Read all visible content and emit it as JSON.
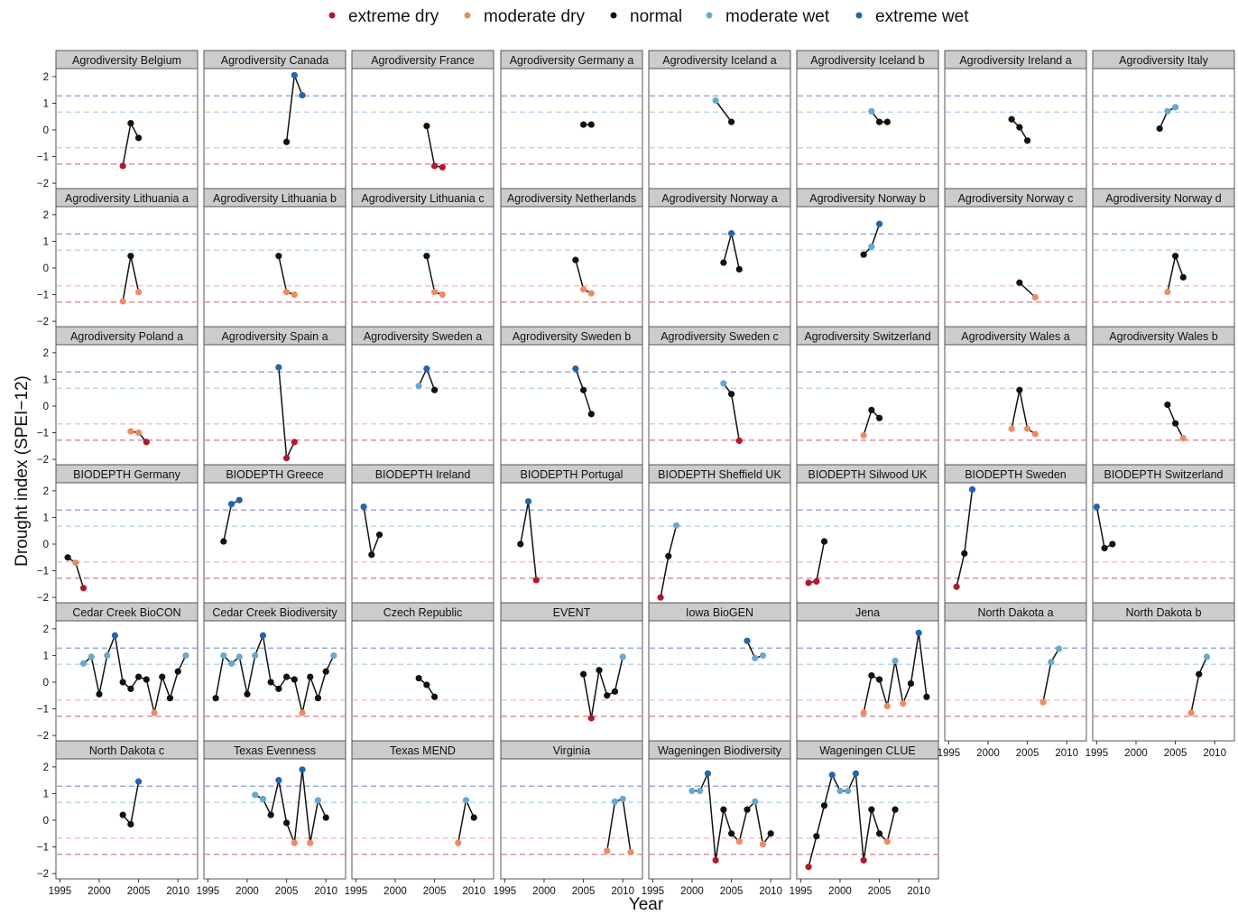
{
  "chart_data": {
    "type": "scatter",
    "xlabel": "Year",
    "ylabel": "Drought index (SPEI−12)",
    "xlim": [
      1994.5,
      2012.5
    ],
    "ylim": [
      -2.2,
      2.3
    ],
    "xticks": [
      1995,
      2000,
      2005,
      2010
    ],
    "yticks": [
      -2,
      -1,
      0,
      1,
      2
    ],
    "ytick_labels": [
      "−2",
      "−1",
      "0",
      "1",
      "2"
    ],
    "thresholds": [
      {
        "value": 1.28,
        "color": "#7b8fd0"
      },
      {
        "value": 0.67,
        "color": "#a9cbe0"
      },
      {
        "value": -0.67,
        "color": "#f2b49a"
      },
      {
        "value": -1.28,
        "color": "#d26a7c"
      }
    ],
    "legend": [
      {
        "label": "extreme dry",
        "color": "#b2182b"
      },
      {
        "label": "moderate dry",
        "color": "#ef8a62"
      },
      {
        "label": "normal",
        "color": "#111111"
      },
      {
        "label": "moderate wet",
        "color": "#67a9cf"
      },
      {
        "label": "extreme wet",
        "color": "#2166ac"
      }
    ],
    "grid": false,
    "legend_position": "top",
    "panels": [
      {
        "title": "Agrodiversity Belgium",
        "x": [
          2003,
          2004,
          2005
        ],
        "y": [
          -1.35,
          0.25,
          -0.3
        ]
      },
      {
        "title": "Agrodiversity Canada",
        "x": [
          2005,
          2006,
          2007
        ],
        "y": [
          -0.45,
          2.05,
          1.3
        ]
      },
      {
        "title": "Agrodiversity France",
        "x": [
          2004,
          2005,
          2006
        ],
        "y": [
          0.15,
          -1.35,
          -1.4
        ]
      },
      {
        "title": "Agrodiversity Germany a",
        "x": [
          2005,
          2006
        ],
        "y": [
          0.2,
          0.2
        ]
      },
      {
        "title": "Agrodiversity Iceland a",
        "x": [
          2003,
          2005
        ],
        "y": [
          1.1,
          0.3
        ]
      },
      {
        "title": "Agrodiversity Iceland b",
        "x": [
          2004,
          2005,
          2006
        ],
        "y": [
          0.7,
          0.3,
          0.3
        ]
      },
      {
        "title": "Agrodiversity Ireland a",
        "x": [
          2003,
          2004,
          2005
        ],
        "y": [
          0.4,
          0.1,
          -0.4
        ]
      },
      {
        "title": "Agrodiversity Italy",
        "x": [
          2003,
          2004,
          2005
        ],
        "y": [
          0.05,
          0.7,
          0.85
        ]
      },
      {
        "title": "Agrodiversity Lithuania a",
        "x": [
          2003,
          2004,
          2005
        ],
        "y": [
          -1.25,
          0.45,
          -0.9
        ]
      },
      {
        "title": "Agrodiversity Lithuania b",
        "x": [
          2004,
          2005,
          2006
        ],
        "y": [
          0.45,
          -0.9,
          -1.0
        ]
      },
      {
        "title": "Agrodiversity Lithuania c",
        "x": [
          2004,
          2005,
          2006
        ],
        "y": [
          0.45,
          -0.9,
          -1.0
        ]
      },
      {
        "title": "Agrodiversity Netherlands",
        "x": [
          2004,
          2005,
          2006
        ],
        "y": [
          0.3,
          -0.8,
          -0.95
        ]
      },
      {
        "title": "Agrodiversity Norway a",
        "x": [
          2004,
          2005,
          2006
        ],
        "y": [
          0.2,
          1.3,
          -0.05
        ]
      },
      {
        "title": "Agrodiversity Norway b",
        "x": [
          2003,
          2004,
          2005
        ],
        "y": [
          0.5,
          0.8,
          1.65
        ]
      },
      {
        "title": "Agrodiversity Norway c",
        "x": [
          2004,
          2006
        ],
        "y": [
          -0.55,
          -1.1
        ]
      },
      {
        "title": "Agrodiversity Norway d",
        "x": [
          2004,
          2005,
          2006
        ],
        "y": [
          -0.9,
          0.45,
          -0.35
        ]
      },
      {
        "title": "Agrodiversity Poland a",
        "x": [
          2004,
          2005,
          2006
        ],
        "y": [
          -0.95,
          -1.0,
          -1.35
        ]
      },
      {
        "title": "Agrodiversity Spain a",
        "x": [
          2004,
          2005,
          2006
        ],
        "y": [
          1.45,
          -1.95,
          -1.35
        ]
      },
      {
        "title": "Agrodiversity Sweden a",
        "x": [
          2003,
          2004,
          2005
        ],
        "y": [
          0.75,
          1.4,
          0.6
        ]
      },
      {
        "title": "Agrodiversity Sweden b",
        "x": [
          2004,
          2005,
          2006
        ],
        "y": [
          1.4,
          0.6,
          -0.3
        ]
      },
      {
        "title": "Agrodiversity Sweden c",
        "x": [
          2004,
          2005,
          2006
        ],
        "y": [
          0.85,
          0.45,
          -1.3
        ]
      },
      {
        "title": "Agrodiversity Switzerland",
        "x": [
          2003,
          2004,
          2005
        ],
        "y": [
          -1.1,
          -0.15,
          -0.45
        ]
      },
      {
        "title": "Agrodiversity Wales a",
        "x": [
          2003,
          2004,
          2005,
          2006
        ],
        "y": [
          -0.85,
          0.6,
          -0.85,
          -1.05
        ]
      },
      {
        "title": "Agrodiversity Wales b",
        "x": [
          2004,
          2005,
          2006
        ],
        "y": [
          0.05,
          -0.65,
          -1.2
        ]
      },
      {
        "title": "BIODEPTH Germany",
        "x": [
          1996,
          1997,
          1998
        ],
        "y": [
          -0.5,
          -0.7,
          -1.65
        ]
      },
      {
        "title": "BIODEPTH Greece",
        "x": [
          1997,
          1998,
          1999
        ],
        "y": [
          0.1,
          1.5,
          1.65
        ]
      },
      {
        "title": "BIODEPTH Ireland",
        "x": [
          1996,
          1997,
          1998
        ],
        "y": [
          1.4,
          -0.4,
          0.35
        ]
      },
      {
        "title": "BIODEPTH Portugal",
        "x": [
          1997,
          1998,
          1999
        ],
        "y": [
          0.0,
          1.6,
          -1.35
        ]
      },
      {
        "title": "BIODEPTH Sheffield UK",
        "x": [
          1996,
          1997,
          1998
        ],
        "y": [
          -2.0,
          -0.45,
          0.7
        ]
      },
      {
        "title": "BIODEPTH Silwood UK",
        "x": [
          1996,
          1997,
          1998
        ],
        "y": [
          -1.45,
          -1.4,
          0.1
        ]
      },
      {
        "title": "BIODEPTH Sweden",
        "x": [
          1996,
          1997,
          1998
        ],
        "y": [
          -1.6,
          -0.35,
          2.05
        ]
      },
      {
        "title": "BIODEPTH Switzerland",
        "x": [
          1995,
          1996,
          1997
        ],
        "y": [
          1.4,
          -0.15,
          0.0
        ]
      },
      {
        "title": "Cedar Creek BioCON",
        "x": [
          1998,
          1999,
          2000,
          2001,
          2002,
          2003,
          2004,
          2005,
          2006,
          2007,
          2008,
          2009,
          2010,
          2011
        ],
        "y": [
          0.7,
          0.95,
          -0.45,
          1.0,
          1.75,
          0.0,
          -0.25,
          0.2,
          0.1,
          -1.15,
          0.2,
          -0.6,
          0.4,
          1.0
        ]
      },
      {
        "title": "Cedar Creek Biodiversity",
        "x": [
          1996,
          1997,
          1998,
          1999,
          2000,
          2001,
          2002,
          2003,
          2004,
          2005,
          2006,
          2007,
          2008,
          2009,
          2010,
          2011
        ],
        "y": [
          -0.6,
          1.0,
          0.7,
          0.95,
          -0.45,
          1.0,
          1.75,
          0.0,
          -0.25,
          0.2,
          0.1,
          -1.15,
          0.2,
          -0.6,
          0.4,
          1.0
        ]
      },
      {
        "title": "Czech Republic",
        "x": [
          2003,
          2004,
          2005
        ],
        "y": [
          0.15,
          -0.1,
          -0.55
        ]
      },
      {
        "title": "EVENT",
        "x": [
          2005,
          2006,
          2007,
          2008,
          2009,
          2010
        ],
        "y": [
          0.3,
          -1.35,
          0.45,
          -0.5,
          -0.35,
          0.95
        ]
      },
      {
        "title": "Iowa BioGEN",
        "x": [
          2007,
          2008,
          2009
        ],
        "y": [
          1.55,
          0.9,
          1.0
        ]
      },
      {
        "title": "Jena",
        "x": [
          2003,
          2004,
          2005,
          2006,
          2007,
          2008,
          2009,
          2010,
          2011
        ],
        "y": [
          -1.15,
          0.25,
          0.1,
          -0.9,
          0.8,
          -0.8,
          -0.05,
          1.85,
          -0.55
        ]
      },
      {
        "title": "North Dakota a",
        "x": [
          2007,
          2008,
          2009
        ],
        "y": [
          -0.75,
          0.75,
          1.25
        ]
      },
      {
        "title": "North Dakota b",
        "x": [
          2007,
          2008,
          2009
        ],
        "y": [
          -1.15,
          0.3,
          0.95
        ]
      },
      {
        "title": "North Dakota c",
        "x": [
          2003,
          2004,
          2005
        ],
        "y": [
          0.2,
          -0.15,
          1.45
        ]
      },
      {
        "title": "Texas Evenness",
        "x": [
          2001,
          2002,
          2003,
          2004,
          2005,
          2006,
          2007,
          2008,
          2009,
          2010
        ],
        "y": [
          0.95,
          0.8,
          0.2,
          1.5,
          -0.1,
          -0.85,
          1.9,
          -0.85,
          0.75,
          0.1
        ]
      },
      {
        "title": "Texas MEND",
        "x": [
          2008,
          2009,
          2010
        ],
        "y": [
          -0.85,
          0.75,
          0.1
        ]
      },
      {
        "title": "Virginia",
        "x": [
          2008,
          2009,
          2010,
          2011
        ],
        "y": [
          -1.15,
          0.7,
          0.8,
          -1.2
        ]
      },
      {
        "title": "Wageningen Biodiversity",
        "x": [
          2000,
          2001,
          2002,
          2003,
          2004,
          2005,
          2006,
          2007,
          2008,
          2009,
          2010
        ],
        "y": [
          1.1,
          1.1,
          1.75,
          -1.5,
          0.4,
          -0.5,
          -0.8,
          0.4,
          0.7,
          -0.9,
          -0.5
        ]
      },
      {
        "title": "Wageningen CLUE",
        "x": [
          1996,
          1997,
          1998,
          1999,
          2000,
          2001,
          2002,
          2003,
          2004,
          2005,
          2006,
          2007
        ],
        "y": [
          -1.75,
          -0.6,
          0.55,
          1.7,
          1.1,
          1.1,
          1.75,
          -1.5,
          0.4,
          -0.5,
          -0.8,
          0.4
        ]
      }
    ]
  }
}
